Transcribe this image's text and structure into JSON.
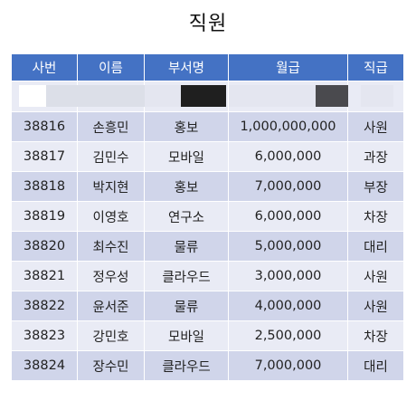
{
  "title": "직원",
  "columns": [
    "사번",
    "이름",
    "부서명",
    "월급",
    "직급"
  ],
  "rows": [
    [
      "38816",
      "손흥민",
      "홍보",
      "1,000,000,000",
      "사원"
    ],
    [
      "38817",
      "김민수",
      "모바일",
      "6,000,000",
      "과장"
    ],
    [
      "38818",
      "박지현",
      "홍보",
      "7,000,000",
      "부장"
    ],
    [
      "38819",
      "이영호",
      "연구소",
      "6,000,000",
      "차장"
    ],
    [
      "38820",
      "최수진",
      "물류",
      "5,000,000",
      "대리"
    ],
    [
      "38821",
      "정우성",
      "클라우드",
      "3,000,000",
      "사원"
    ],
    [
      "38822",
      "윤서준",
      "물류",
      "4,000,000",
      "사원"
    ],
    [
      "38823",
      "강민호",
      "모바일",
      "2,500,000",
      "차장"
    ],
    [
      "38824",
      "장수민",
      "클라우드",
      "7,000,000",
      "대리"
    ]
  ],
  "colors": {
    "header": "#4472c4",
    "row_light": "#e9ebf5",
    "row_dark": "#d0d5ea"
  }
}
